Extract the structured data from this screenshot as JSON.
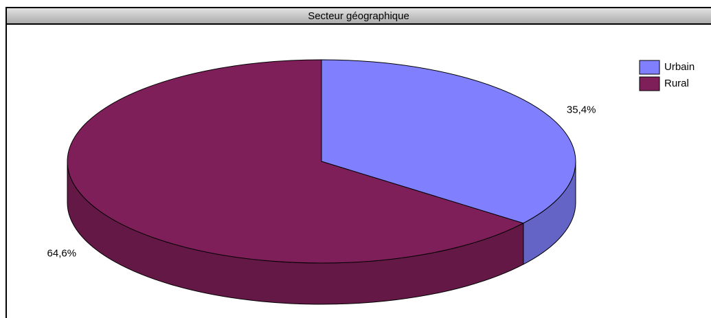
{
  "chart_data": {
    "type": "pie",
    "title": "Secteur géographique",
    "categories": [
      "Urbain",
      "Rural"
    ],
    "values": [
      35.4,
      64.6
    ],
    "value_labels": [
      "35,4%",
      "64,6%"
    ],
    "colors": [
      "#8080ff",
      "#7f1f5a"
    ],
    "legend": "top-right"
  }
}
